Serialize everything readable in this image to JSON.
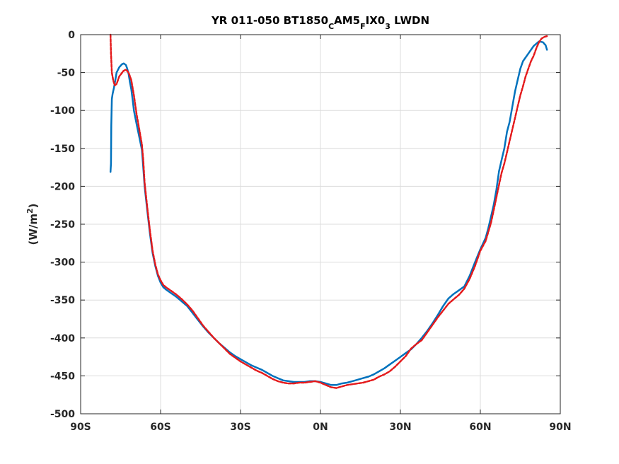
{
  "chart_data": {
    "type": "line",
    "title_parts": [
      {
        "text": "YR 011-050 BT1850",
        "sub": false
      },
      {
        "text": "C",
        "sub": true
      },
      {
        "text": "AM5",
        "sub": false
      },
      {
        "text": "F",
        "sub": true
      },
      {
        "text": "IX0",
        "sub": false
      },
      {
        "text": "3",
        "sub": true
      },
      {
        "text": " LWDN",
        "sub": false
      }
    ],
    "ylabel_parts": [
      {
        "text": "(W/m",
        "sup": false
      },
      {
        "text": "2",
        "sup": true
      },
      {
        "text": ")",
        "sup": false
      }
    ],
    "xlim": [
      -90,
      90
    ],
    "ylim": [
      -500,
      0
    ],
    "xticks": [
      {
        "value": -90,
        "label": "90S"
      },
      {
        "value": -60,
        "label": "60S"
      },
      {
        "value": -30,
        "label": "30S"
      },
      {
        "value": 0,
        "label": "0N"
      },
      {
        "value": 30,
        "label": "30N"
      },
      {
        "value": 60,
        "label": "60N"
      },
      {
        "value": 90,
        "label": "90N"
      }
    ],
    "yticks": [
      {
        "value": 0,
        "label": "0"
      },
      {
        "value": -50,
        "label": "-50"
      },
      {
        "value": -100,
        "label": "-100"
      },
      {
        "value": -150,
        "label": "-150"
      },
      {
        "value": -200,
        "label": "-200"
      },
      {
        "value": -250,
        "label": "-250"
      },
      {
        "value": -300,
        "label": "-300"
      },
      {
        "value": -350,
        "label": "-350"
      },
      {
        "value": -400,
        "label": "-400"
      },
      {
        "value": -450,
        "label": "-450"
      },
      {
        "value": -500,
        "label": "-500"
      }
    ],
    "grid": true,
    "series": [
      {
        "color": "#0072bd",
        "style": "solid",
        "points": [
          [
            -78.8,
            -181
          ],
          [
            -78.6,
            -170
          ],
          [
            -78.5,
            -120
          ],
          [
            -78.3,
            -85
          ],
          [
            -78.0,
            -78
          ],
          [
            -77.5,
            -70
          ],
          [
            -77.0,
            -60
          ],
          [
            -76.5,
            -50
          ],
          [
            -75.5,
            -43
          ],
          [
            -74.5,
            -39
          ],
          [
            -73.8,
            -38
          ],
          [
            -73.0,
            -40
          ],
          [
            -72.5,
            -45
          ],
          [
            -72.0,
            -52
          ],
          [
            -71.5,
            -63
          ],
          [
            -71.0,
            -72
          ],
          [
            -70.5,
            -85
          ],
          [
            -70.0,
            -100
          ],
          [
            -69.0,
            -118
          ],
          [
            -68.0,
            -135
          ],
          [
            -67.0,
            -152
          ],
          [
            -66.5,
            -175
          ],
          [
            -66.0,
            -200
          ],
          [
            -65.0,
            -232
          ],
          [
            -64.0,
            -262
          ],
          [
            -63.0,
            -288
          ],
          [
            -62.0,
            -305
          ],
          [
            -61.0,
            -318
          ],
          [
            -60.0,
            -327
          ],
          [
            -59.0,
            -333
          ],
          [
            -58.0,
            -336
          ],
          [
            -56.0,
            -341
          ],
          [
            -54.0,
            -346
          ],
          [
            -52.0,
            -352
          ],
          [
            -50.0,
            -358
          ],
          [
            -48.0,
            -367
          ],
          [
            -46.0,
            -376
          ],
          [
            -44.0,
            -385
          ],
          [
            -42.0,
            -393
          ],
          [
            -40.0,
            -400
          ],
          [
            -38.0,
            -407
          ],
          [
            -36.0,
            -413
          ],
          [
            -34.0,
            -419
          ],
          [
            -32.0,
            -424
          ],
          [
            -30.0,
            -428
          ],
          [
            -28.0,
            -432
          ],
          [
            -26.0,
            -436
          ],
          [
            -24.0,
            -439
          ],
          [
            -22.0,
            -442
          ],
          [
            -20.0,
            -446
          ],
          [
            -18.0,
            -450
          ],
          [
            -16.0,
            -453
          ],
          [
            -14.0,
            -456
          ],
          [
            -12.0,
            -457
          ],
          [
            -10.0,
            -458
          ],
          [
            -8.0,
            -458
          ],
          [
            -6.0,
            -458
          ],
          [
            -4.0,
            -457
          ],
          [
            -2.0,
            -457
          ],
          [
            0.0,
            -458
          ],
          [
            2.0,
            -460
          ],
          [
            4.0,
            -462
          ],
          [
            6.0,
            -462
          ],
          [
            8.0,
            -460
          ],
          [
            10.0,
            -459
          ],
          [
            12.0,
            -457
          ],
          [
            14.0,
            -455
          ],
          [
            16.0,
            -453
          ],
          [
            18.0,
            -451
          ],
          [
            20.0,
            -448
          ],
          [
            22.0,
            -444
          ],
          [
            24.0,
            -440
          ],
          [
            26.0,
            -435
          ],
          [
            28.0,
            -430
          ],
          [
            30.0,
            -425
          ],
          [
            32.0,
            -420
          ],
          [
            34.0,
            -415
          ],
          [
            36.0,
            -408
          ],
          [
            38.0,
            -400
          ],
          [
            40.0,
            -391
          ],
          [
            42.0,
            -381
          ],
          [
            44.0,
            -370
          ],
          [
            46.0,
            -358
          ],
          [
            48.0,
            -348
          ],
          [
            50.0,
            -342
          ],
          [
            52.0,
            -337
          ],
          [
            54.0,
            -332
          ],
          [
            56.0,
            -318
          ],
          [
            58.0,
            -300
          ],
          [
            60.0,
            -283
          ],
          [
            62.0,
            -268
          ],
          [
            63.0,
            -255
          ],
          [
            64.0,
            -240
          ],
          [
            65.0,
            -225
          ],
          [
            66.0,
            -205
          ],
          [
            67.0,
            -180
          ],
          [
            68.0,
            -165
          ],
          [
            69.0,
            -150
          ],
          [
            70.0,
            -128
          ],
          [
            71.0,
            -115
          ],
          [
            72.0,
            -95
          ],
          [
            73.0,
            -75
          ],
          [
            74.0,
            -60
          ],
          [
            75.0,
            -45
          ],
          [
            76.0,
            -35
          ],
          [
            78.0,
            -25
          ],
          [
            80.0,
            -15
          ],
          [
            82.0,
            -9
          ],
          [
            83.5,
            -10
          ],
          [
            84.5,
            -14
          ],
          [
            85.0,
            -20
          ]
        ]
      },
      {
        "color": "#e41a1c",
        "style": "dashed",
        "points": [
          [
            -78.8,
            0
          ],
          [
            -78.6,
            -25
          ],
          [
            -78.3,
            -50
          ],
          [
            -77.8,
            -60
          ],
          [
            -77.2,
            -67
          ],
          [
            -76.5,
            -65
          ],
          [
            -75.5,
            -55
          ],
          [
            -74.0,
            -48
          ],
          [
            -73.0,
            -46
          ],
          [
            -72.0,
            -50
          ],
          [
            -71.0,
            -60
          ],
          [
            -70.0,
            -80
          ],
          [
            -69.0,
            -105
          ],
          [
            -68.0,
            -125
          ],
          [
            -67.0,
            -145
          ],
          [
            -66.5,
            -165
          ],
          [
            -66.0,
            -195
          ],
          [
            -65.0,
            -228
          ],
          [
            -64.0,
            -258
          ],
          [
            -63.0,
            -285
          ],
          [
            -62.0,
            -303
          ],
          [
            -61.0,
            -316
          ],
          [
            -60.0,
            -324
          ],
          [
            -59.0,
            -330
          ],
          [
            -58.0,
            -333
          ],
          [
            -56.0,
            -338
          ],
          [
            -54.0,
            -343
          ],
          [
            -52.0,
            -349
          ],
          [
            -50.0,
            -356
          ],
          [
            -48.0,
            -364
          ],
          [
            -46.0,
            -374
          ],
          [
            -44.0,
            -384
          ],
          [
            -42.0,
            -392
          ],
          [
            -40.0,
            -400
          ],
          [
            -38.0,
            -407
          ],
          [
            -36.0,
            -414
          ],
          [
            -34.0,
            -421
          ],
          [
            -32.0,
            -426
          ],
          [
            -30.0,
            -431
          ],
          [
            -28.0,
            -435
          ],
          [
            -26.0,
            -439
          ],
          [
            -24.0,
            -443
          ],
          [
            -22.0,
            -446
          ],
          [
            -20.0,
            -450
          ],
          [
            -18.0,
            -454
          ],
          [
            -16.0,
            -457
          ],
          [
            -14.0,
            -459
          ],
          [
            -12.0,
            -460
          ],
          [
            -10.0,
            -460
          ],
          [
            -8.0,
            -459
          ],
          [
            -6.0,
            -459
          ],
          [
            -4.0,
            -458
          ],
          [
            -2.0,
            -457
          ],
          [
            0.0,
            -459
          ],
          [
            2.0,
            -462
          ],
          [
            4.0,
            -465
          ],
          [
            6.0,
            -466
          ],
          [
            8.0,
            -464
          ],
          [
            10.0,
            -462
          ],
          [
            12.0,
            -461
          ],
          [
            14.0,
            -460
          ],
          [
            16.0,
            -459
          ],
          [
            18.0,
            -457
          ],
          [
            20.0,
            -455
          ],
          [
            22.0,
            -451
          ],
          [
            24.0,
            -448
          ],
          [
            26.0,
            -444
          ],
          [
            28.0,
            -438
          ],
          [
            30.0,
            -431
          ],
          [
            32.0,
            -424
          ],
          [
            34.0,
            -414
          ],
          [
            36.0,
            -408
          ],
          [
            38.0,
            -403
          ],
          [
            40.0,
            -393
          ],
          [
            42.0,
            -383
          ],
          [
            44.0,
            -373
          ],
          [
            46.0,
            -364
          ],
          [
            48.0,
            -355
          ],
          [
            50.0,
            -349
          ],
          [
            52.0,
            -343
          ],
          [
            54.0,
            -335
          ],
          [
            56.0,
            -322
          ],
          [
            58.0,
            -305
          ],
          [
            60.0,
            -285
          ],
          [
            62.0,
            -272
          ],
          [
            63.0,
            -260
          ],
          [
            64.0,
            -248
          ],
          [
            65.0,
            -232
          ],
          [
            66.0,
            -215
          ],
          [
            67.0,
            -198
          ],
          [
            68.0,
            -182
          ],
          [
            69.0,
            -170
          ],
          [
            70.0,
            -155
          ],
          [
            71.0,
            -140
          ],
          [
            72.0,
            -125
          ],
          [
            73.0,
            -110
          ],
          [
            74.0,
            -95
          ],
          [
            75.0,
            -80
          ],
          [
            76.0,
            -68
          ],
          [
            77.0,
            -55
          ],
          [
            78.0,
            -45
          ],
          [
            79.0,
            -35
          ],
          [
            80.0,
            -28
          ],
          [
            81.0,
            -18
          ],
          [
            82.0,
            -10
          ],
          [
            83.0,
            -5
          ],
          [
            84.0,
            -3
          ],
          [
            85.0,
            -2
          ]
        ]
      }
    ]
  }
}
